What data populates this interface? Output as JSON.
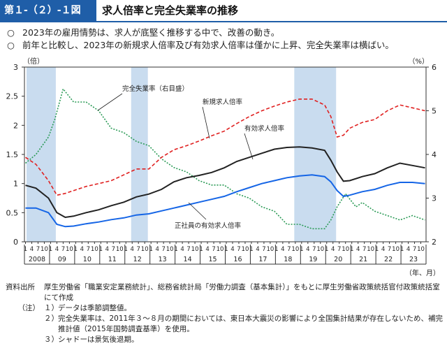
{
  "header": {
    "figure_number": "第１-（２）-１図",
    "title": "求人倍率と完全失業率の推移"
  },
  "bullets": [
    {
      "mark": "○",
      "text": "2023年の雇用情勢は、求人が底堅く推移する中で、改善の動き。"
    },
    {
      "mark": "○",
      "text": "前年と比較し、2023年の新規求人倍率及び有効求人倍率は僅かに上昇、完全失業率は横ばい。"
    }
  ],
  "chart_data": {
    "type": "line",
    "left_axis_unit": "（倍）",
    "right_axis_unit": "（%）",
    "x_axis_unit": "（年、月）",
    "left_ylim": [
      0,
      3
    ],
    "right_ylim": [
      2,
      6
    ],
    "left_ticks": [
      "0",
      "0.5",
      "1",
      "1.5",
      "2",
      "2.5",
      "3"
    ],
    "right_ticks": [
      "2",
      "3",
      "4",
      "5",
      "6"
    ],
    "month_ticks": [
      "1",
      "4",
      "7",
      "10"
    ],
    "years": [
      "2008",
      "09",
      "10",
      "11",
      "12",
      "13",
      "14",
      "15",
      "16",
      "17",
      "18",
      "19",
      "20",
      "21",
      "22",
      "23"
    ],
    "recession_shading": [
      {
        "start": "2008-02",
        "end": "2009-03"
      },
      {
        "start": "2012-04",
        "end": "2012-11"
      },
      {
        "start": "2018-10",
        "end": "2020-05"
      }
    ],
    "series": [
      {
        "name": "完全失業率（右目盛）",
        "axis": "right",
        "color": "#2a9a55",
        "style": "dotted",
        "points": [
          [
            "2008-01",
            3.8
          ],
          [
            "2008-06",
            4.0
          ],
          [
            "2008-12",
            4.4
          ],
          [
            "2009-03",
            4.8
          ],
          [
            "2009-07",
            5.5
          ],
          [
            "2009-12",
            5.2
          ],
          [
            "2010-06",
            5.2
          ],
          [
            "2010-12",
            5.0
          ],
          [
            "2011-06",
            4.6
          ],
          [
            "2011-12",
            4.5
          ],
          [
            "2012-06",
            4.3
          ],
          [
            "2012-12",
            4.2
          ],
          [
            "2013-06",
            3.9
          ],
          [
            "2013-12",
            3.7
          ],
          [
            "2014-06",
            3.6
          ],
          [
            "2014-12",
            3.4
          ],
          [
            "2015-06",
            3.3
          ],
          [
            "2015-12",
            3.3
          ],
          [
            "2016-06",
            3.1
          ],
          [
            "2016-12",
            3.0
          ],
          [
            "2017-06",
            2.8
          ],
          [
            "2017-12",
            2.7
          ],
          [
            "2018-06",
            2.4
          ],
          [
            "2018-12",
            2.4
          ],
          [
            "2019-06",
            2.3
          ],
          [
            "2019-12",
            2.3
          ],
          [
            "2020-03",
            2.5
          ],
          [
            "2020-06",
            2.8
          ],
          [
            "2020-10",
            3.1
          ],
          [
            "2021-03",
            2.8
          ],
          [
            "2021-06",
            2.9
          ],
          [
            "2021-12",
            2.7
          ],
          [
            "2022-06",
            2.6
          ],
          [
            "2022-12",
            2.5
          ],
          [
            "2023-06",
            2.6
          ],
          [
            "2023-12",
            2.5
          ]
        ]
      },
      {
        "name": "新規求人倍率",
        "axis": "left",
        "color": "#e02020",
        "style": "dashed",
        "points": [
          [
            "2008-01",
            1.45
          ],
          [
            "2008-06",
            1.33
          ],
          [
            "2008-12",
            1.05
          ],
          [
            "2009-04",
            0.8
          ],
          [
            "2009-08",
            0.83
          ],
          [
            "2009-12",
            0.88
          ],
          [
            "2010-06",
            0.95
          ],
          [
            "2010-12",
            1.0
          ],
          [
            "2011-06",
            1.05
          ],
          [
            "2011-12",
            1.15
          ],
          [
            "2012-06",
            1.25
          ],
          [
            "2012-12",
            1.25
          ],
          [
            "2013-06",
            1.45
          ],
          [
            "2013-12",
            1.58
          ],
          [
            "2014-06",
            1.65
          ],
          [
            "2014-12",
            1.73
          ],
          [
            "2015-06",
            1.82
          ],
          [
            "2015-12",
            1.9
          ],
          [
            "2016-06",
            2.03
          ],
          [
            "2016-12",
            2.15
          ],
          [
            "2017-06",
            2.25
          ],
          [
            "2017-12",
            2.33
          ],
          [
            "2018-06",
            2.4
          ],
          [
            "2018-12",
            2.45
          ],
          [
            "2019-06",
            2.45
          ],
          [
            "2019-12",
            2.35
          ],
          [
            "2020-03",
            2.15
          ],
          [
            "2020-06",
            1.8
          ],
          [
            "2020-09",
            1.83
          ],
          [
            "2020-12",
            1.95
          ],
          [
            "2021-06",
            2.05
          ],
          [
            "2021-12",
            2.1
          ],
          [
            "2022-06",
            2.25
          ],
          [
            "2022-12",
            2.35
          ],
          [
            "2023-06",
            2.3
          ],
          [
            "2023-12",
            2.25
          ]
        ]
      },
      {
        "name": "有効求人倍率",
        "axis": "left",
        "color": "#222222",
        "style": "solid",
        "points": [
          [
            "2008-01",
            0.97
          ],
          [
            "2008-06",
            0.92
          ],
          [
            "2008-12",
            0.75
          ],
          [
            "2009-04",
            0.5
          ],
          [
            "2009-08",
            0.42
          ],
          [
            "2009-12",
            0.44
          ],
          [
            "2010-06",
            0.5
          ],
          [
            "2010-12",
            0.55
          ],
          [
            "2011-06",
            0.62
          ],
          [
            "2011-12",
            0.68
          ],
          [
            "2012-06",
            0.77
          ],
          [
            "2012-12",
            0.82
          ],
          [
            "2013-06",
            0.9
          ],
          [
            "2013-12",
            1.03
          ],
          [
            "2014-06",
            1.1
          ],
          [
            "2014-12",
            1.14
          ],
          [
            "2015-06",
            1.19
          ],
          [
            "2015-12",
            1.27
          ],
          [
            "2016-06",
            1.38
          ],
          [
            "2016-12",
            1.45
          ],
          [
            "2017-06",
            1.52
          ],
          [
            "2017-12",
            1.59
          ],
          [
            "2018-06",
            1.62
          ],
          [
            "2018-12",
            1.63
          ],
          [
            "2019-06",
            1.61
          ],
          [
            "2019-12",
            1.57
          ],
          [
            "2020-03",
            1.4
          ],
          [
            "2020-06",
            1.2
          ],
          [
            "2020-09",
            1.04
          ],
          [
            "2020-12",
            1.05
          ],
          [
            "2021-06",
            1.12
          ],
          [
            "2021-12",
            1.17
          ],
          [
            "2022-06",
            1.27
          ],
          [
            "2022-12",
            1.35
          ],
          [
            "2023-06",
            1.31
          ],
          [
            "2023-12",
            1.27
          ]
        ]
      },
      {
        "name": "正社員の有効求人倍率",
        "axis": "left",
        "color": "#1565e6",
        "style": "solid",
        "points": [
          [
            "2008-01",
            0.58
          ],
          [
            "2008-06",
            0.58
          ],
          [
            "2008-12",
            0.5
          ],
          [
            "2009-04",
            0.3
          ],
          [
            "2009-08",
            0.26
          ],
          [
            "2009-12",
            0.27
          ],
          [
            "2010-06",
            0.31
          ],
          [
            "2010-12",
            0.34
          ],
          [
            "2011-06",
            0.38
          ],
          [
            "2011-12",
            0.41
          ],
          [
            "2012-06",
            0.46
          ],
          [
            "2012-12",
            0.48
          ],
          [
            "2013-06",
            0.53
          ],
          [
            "2013-12",
            0.58
          ],
          [
            "2014-06",
            0.63
          ],
          [
            "2014-12",
            0.68
          ],
          [
            "2015-06",
            0.73
          ],
          [
            "2015-12",
            0.78
          ],
          [
            "2016-06",
            0.86
          ],
          [
            "2016-12",
            0.93
          ],
          [
            "2017-06",
            1.0
          ],
          [
            "2017-12",
            1.05
          ],
          [
            "2018-06",
            1.1
          ],
          [
            "2018-12",
            1.13
          ],
          [
            "2019-06",
            1.15
          ],
          [
            "2019-12",
            1.12
          ],
          [
            "2020-03",
            1.03
          ],
          [
            "2020-06",
            0.88
          ],
          [
            "2020-09",
            0.78
          ],
          [
            "2020-12",
            0.8
          ],
          [
            "2021-06",
            0.86
          ],
          [
            "2021-12",
            0.9
          ],
          [
            "2022-06",
            0.97
          ],
          [
            "2022-12",
            1.02
          ],
          [
            "2023-06",
            1.02
          ],
          [
            "2023-12",
            1.0
          ]
        ]
      }
    ],
    "annotations": [
      {
        "text": "完全失業率（右目盛）",
        "series": 0
      },
      {
        "text": "新規求人倍率",
        "series": 1
      },
      {
        "text": "有効求人倍率",
        "series": 2
      },
      {
        "text": "正社員の有効求人倍率",
        "series": 3
      }
    ]
  },
  "notes": {
    "source_label": "資料出所",
    "source_text": "厚生労働省「職業安定業務統計」、総務省統計局「労働力調査（基本集計）」をもとに厚生労働省政策統括官付政策統括室にて作成",
    "notes_label": "（注）",
    "items": [
      {
        "num": "１）",
        "text": "データは季節調整値。"
      },
      {
        "num": "２）",
        "text": "完全失業率は、2011年３～８月の期間においては、東日本大震災の影響により全国集計結果が存在しないため、補完推計値（2015年国勢調査基準）を使用。"
      },
      {
        "num": "３）",
        "text": "シャドーは景気後退期。"
      }
    ]
  }
}
